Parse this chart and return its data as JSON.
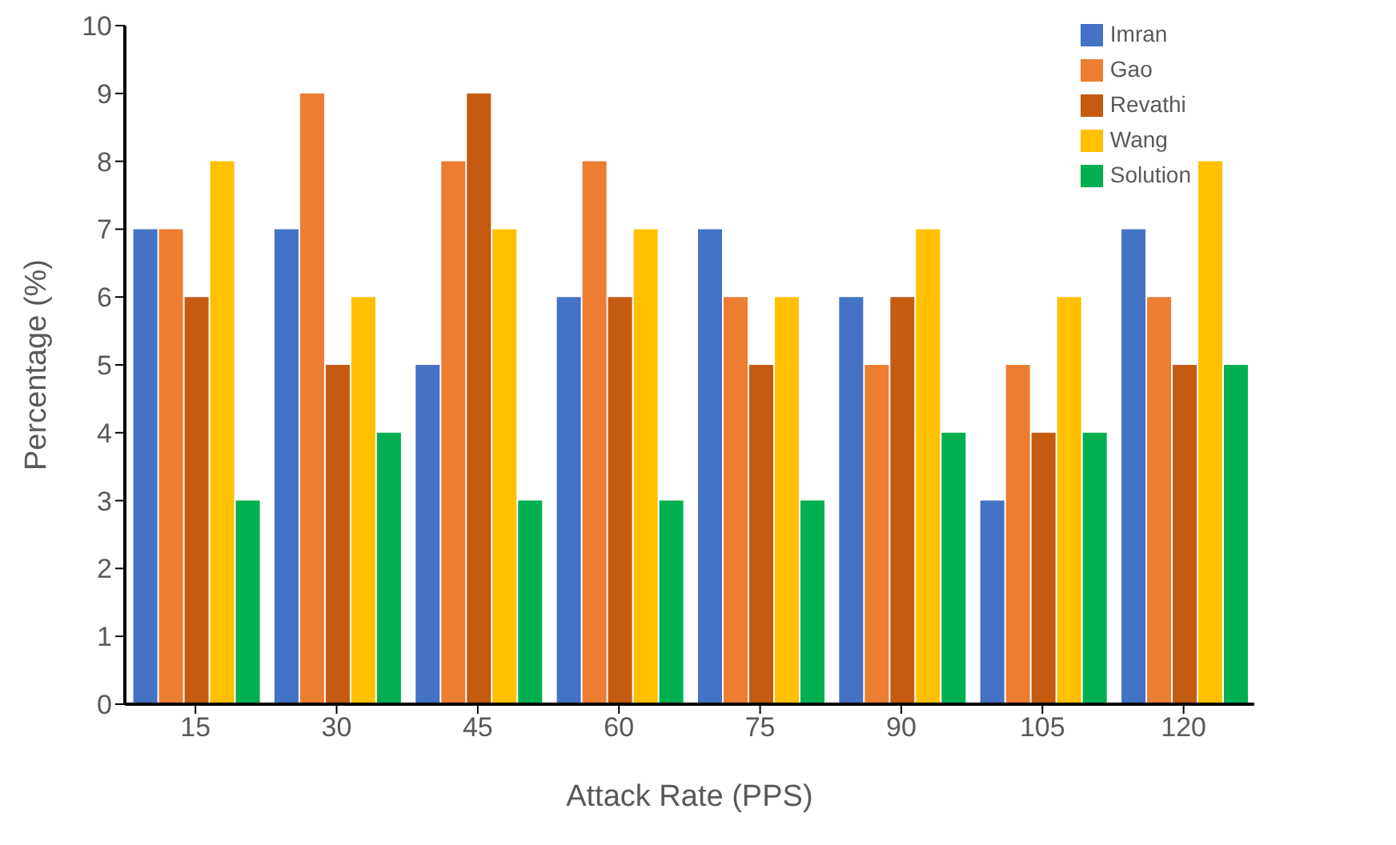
{
  "chart_data": {
    "type": "bar",
    "categories": [
      "15",
      "30",
      "45",
      "60",
      "75",
      "90",
      "105",
      "120"
    ],
    "series": [
      {
        "name": "Imran",
        "color": "#4472c4",
        "values": [
          7,
          7,
          5,
          6,
          7,
          6,
          3,
          7
        ]
      },
      {
        "name": "Gao",
        "color": "#ed7d31",
        "values": [
          7,
          9,
          8,
          8,
          6,
          5,
          5,
          6
        ]
      },
      {
        "name": "Revathi",
        "color": "#c55a11",
        "values": [
          6,
          5,
          9,
          6,
          5,
          6,
          4,
          5
        ]
      },
      {
        "name": "Wang",
        "color": "#ffc000",
        "values": [
          8,
          6,
          7,
          7,
          6,
          7,
          6,
          8
        ]
      },
      {
        "name": "Solution",
        "color": "#00b050",
        "values": [
          3,
          4,
          3,
          3,
          3,
          4,
          4,
          5
        ]
      }
    ],
    "xlabel": "Attack Rate (PPS)",
    "ylabel": "Percentage (%)",
    "ylim": [
      0,
      10
    ],
    "yticks": [
      0,
      1,
      2,
      3,
      4,
      5,
      6,
      7,
      8,
      9,
      10
    ],
    "grid": false,
    "legend": "top right"
  }
}
